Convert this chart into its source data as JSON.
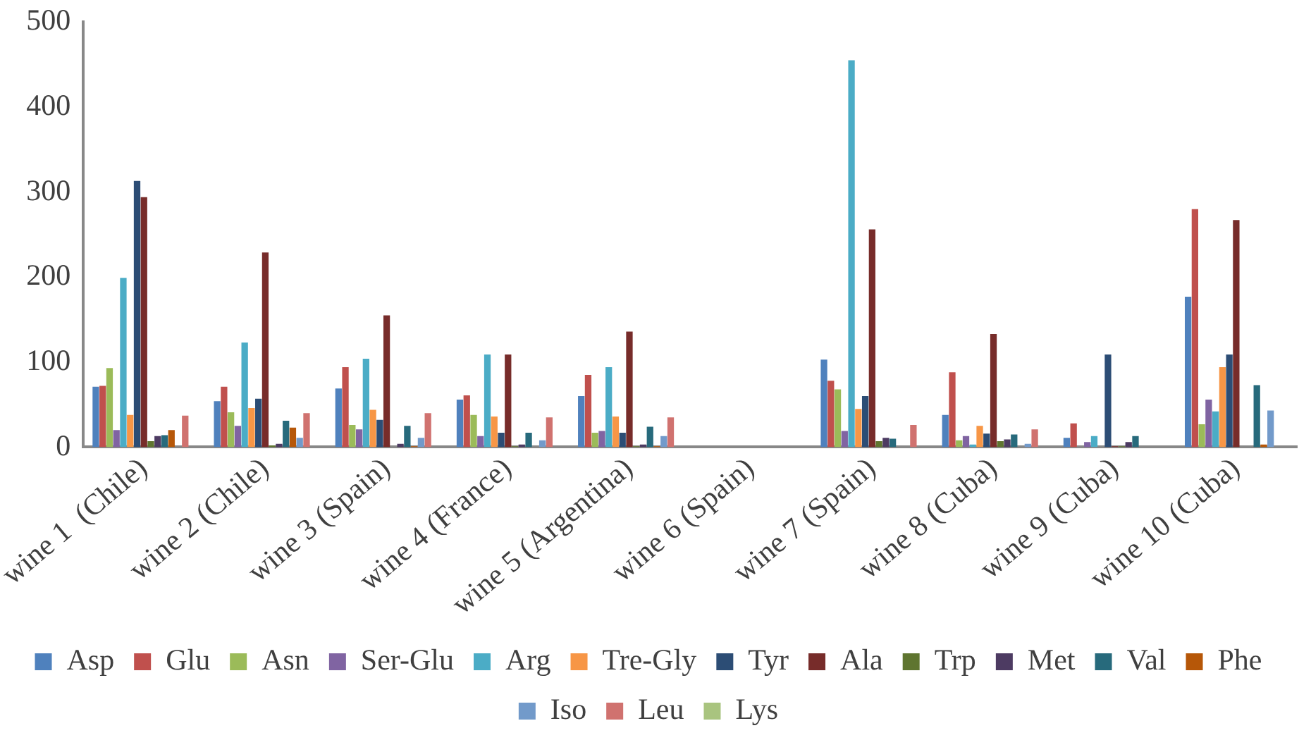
{
  "chart_data": {
    "type": "bar",
    "categories": [
      "wine 1  (Chile)",
      "wine 2 (Chile)",
      "wine 3 (Spain)",
      "wine 4 (France)",
      "wine 5 (Argentina)",
      "wine 6 (Spain)",
      "wine 7 (Spain)",
      "wine 8 (Cuba)",
      "wine 9 (Cuba)",
      "wine 10 (Cuba)"
    ],
    "series": [
      {
        "name": "Asp",
        "color": "#4f81bd",
        "values": [
          71,
          54,
          69,
          56,
          60,
          0,
          103,
          38,
          11,
          177
        ]
      },
      {
        "name": "Glu",
        "color": "#c0504d",
        "values": [
          72,
          71,
          94,
          61,
          85,
          0,
          78,
          88,
          28,
          280
        ]
      },
      {
        "name": "Asn",
        "color": "#9bbb59",
        "values": [
          93,
          41,
          26,
          38,
          17,
          0,
          68,
          8,
          0,
          27
        ]
      },
      {
        "name": "Ser-Glu",
        "color": "#8064a2",
        "values": [
          20,
          25,
          21,
          13,
          19,
          0,
          19,
          13,
          6,
          56
        ]
      },
      {
        "name": "Arg",
        "color": "#4bacc6",
        "values": [
          199,
          123,
          104,
          109,
          94,
          0,
          455,
          3,
          13,
          42
        ]
      },
      {
        "name": "Tre-Gly",
        "color": "#f79646",
        "values": [
          38,
          46,
          44,
          36,
          36,
          0,
          45,
          25,
          0,
          94
        ]
      },
      {
        "name": "Tyr",
        "color": "#2c4d75",
        "values": [
          313,
          57,
          32,
          17,
          17,
          0,
          60,
          16,
          109,
          109
        ]
      },
      {
        "name": "Ala",
        "color": "#772c2a",
        "values": [
          294,
          229,
          155,
          109,
          136,
          0,
          256,
          133,
          1,
          267
        ]
      },
      {
        "name": "Trp",
        "color": "#5f7530",
        "values": [
          7,
          2,
          0,
          1,
          1,
          0,
          7,
          7,
          1,
          0
        ]
      },
      {
        "name": "Met",
        "color": "#4d3b62",
        "values": [
          13,
          4,
          4,
          3,
          3,
          0,
          11,
          9,
          6,
          0
        ]
      },
      {
        "name": "Val",
        "color": "#276a7c",
        "values": [
          14,
          31,
          25,
          17,
          24,
          0,
          10,
          15,
          13,
          73
        ]
      },
      {
        "name": "Phe",
        "color": "#b65708",
        "values": [
          20,
          23,
          1,
          0,
          1,
          0,
          0,
          0,
          0,
          3
        ]
      },
      {
        "name": "Iso",
        "color": "#729aca",
        "values": [
          0,
          11,
          11,
          8,
          13,
          0,
          0,
          4,
          0,
          43
        ]
      },
      {
        "name": "Leu",
        "color": "#d0726f",
        "values": [
          37,
          40,
          40,
          35,
          35,
          0,
          26,
          21,
          0,
          0
        ]
      },
      {
        "name": "Lys",
        "color": "#a9c47f",
        "values": [
          0,
          0,
          0,
          0,
          0,
          0,
          0,
          0,
          0,
          0
        ]
      }
    ],
    "ylim": [
      0,
      500
    ],
    "yticks": [
      0,
      100,
      200,
      300,
      400,
      500
    ],
    "grid": false,
    "legend": "bottom"
  }
}
